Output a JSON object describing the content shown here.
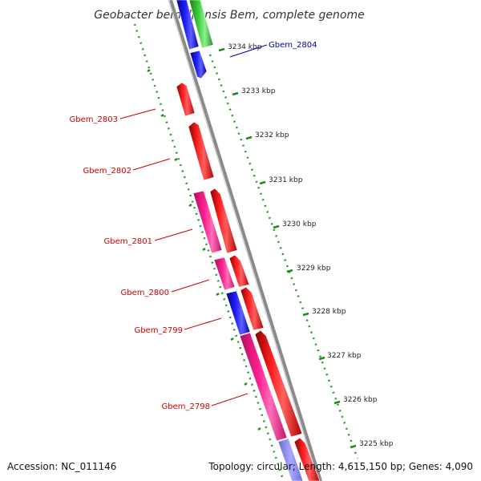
{
  "title": "Geobacter bemidjiensis Bem, complete genome",
  "footer": {
    "accession": "Accession: NC_011146",
    "summary": "Topology: circular; Length: 4,615,150 bp; Genes: 4,090"
  },
  "ticks": [
    "3234 kbp",
    "3233 kbp",
    "3232 kbp",
    "3231 kbp",
    "3230 kbp",
    "3229 kbp",
    "3228 kbp",
    "3227 kbp",
    "3226 kbp",
    "3225 kbp"
  ],
  "genes": {
    "gbem_2804": "Gbem_2804",
    "gbem_2803": "Gbem_2803",
    "gbem_2802": "Gbem_2802",
    "gbem_2801": "Gbem_2801",
    "gbem_2800": "Gbem_2800",
    "gbem_2799": "Gbem_2799",
    "gbem_2798": "Gbem_2798"
  },
  "colors": {
    "forward_cds": "#ff0000",
    "reverse_cds": "#ff1493",
    "other_blue": "#0000ff",
    "other_green": "#33cc33",
    "tick_green": "#1a8c1a",
    "backbone": "#808080",
    "label_red": "#cc0000",
    "label_blue": "#0000aa"
  }
}
